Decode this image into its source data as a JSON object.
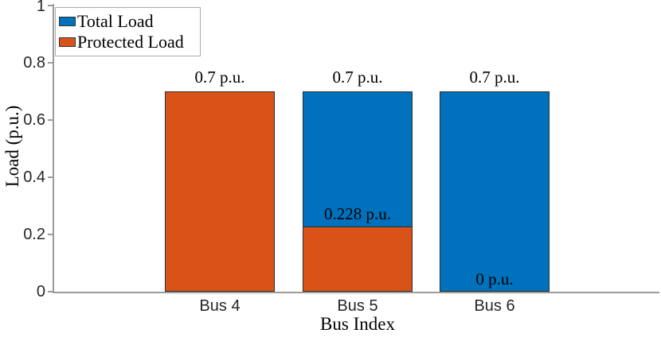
{
  "chart_data": {
    "type": "bar",
    "categories": [
      "Bus 4",
      "Bus 5",
      "Bus 6"
    ],
    "series": [
      {
        "name": "Total Load",
        "color": "#0072BD",
        "values": [
          0.7,
          0.7,
          0.7
        ]
      },
      {
        "name": "Protected Load",
        "color": "#D95319",
        "values": [
          0.7,
          0.228,
          0
        ]
      }
    ],
    "bar_value_labels": [
      {
        "category": "Bus 4",
        "top_label": "0.7 p.u.",
        "inner_label": null,
        "inner_value": null
      },
      {
        "category": "Bus 5",
        "top_label": "0.7 p.u.",
        "inner_label": "0.228 p.u.",
        "inner_value": 0.228
      },
      {
        "category": "Bus 6",
        "top_label": "0.7 p.u.",
        "inner_label": "0 p.u.",
        "inner_value": 0
      }
    ],
    "title": "",
    "xlabel": "Bus Index",
    "ylabel": "Load (p.u.)",
    "ylim": [
      0,
      1
    ],
    "yticks": [
      0,
      0.2,
      0.4,
      0.6,
      0.8,
      1
    ],
    "ytick_labels": [
      "0",
      "0.2",
      "0.4",
      "0.6",
      "0.8",
      "1"
    ],
    "legend": {
      "position": "top-left",
      "entries": [
        "Total Load",
        "Protected Load"
      ]
    },
    "grid": false,
    "colors": {
      "total_load": "#0072BD",
      "protected_load": "#D95319",
      "axis": "#9b9b9b",
      "tick_label": "#262626",
      "bar_edge": "#2a2a2a"
    }
  }
}
